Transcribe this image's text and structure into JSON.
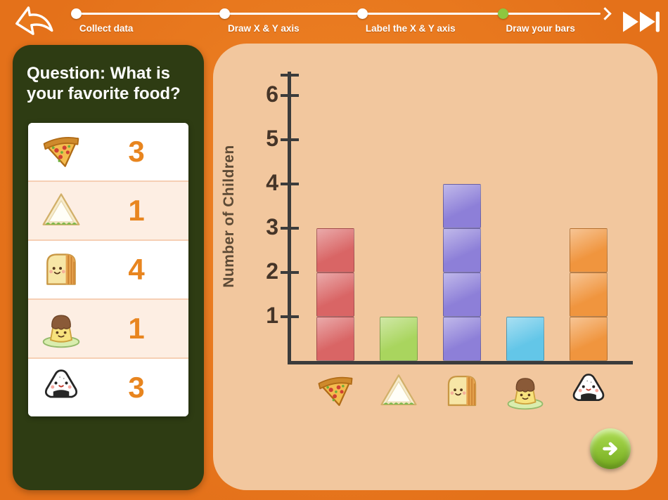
{
  "header": {
    "back_icon": "back-arrow-icon",
    "skip_icon": "fast-forward-icon",
    "active_step_color": "#8dc63f",
    "steps": [
      {
        "label": "Collect data",
        "state": "done"
      },
      {
        "label": "Draw X & Y axis",
        "state": "done"
      },
      {
        "label": "Label the X & Y axis",
        "state": "done"
      },
      {
        "label": "Draw your bars",
        "state": "active"
      }
    ]
  },
  "question_panel": {
    "title": "Question: What is your favorite food?",
    "count_color": "#e8851f",
    "rows": [
      {
        "food": "pizza",
        "count": "3"
      },
      {
        "food": "sandwich",
        "count": "1"
      },
      {
        "food": "bread",
        "count": "4"
      },
      {
        "food": "pudding",
        "count": "1"
      },
      {
        "food": "onigiri",
        "count": "3"
      }
    ]
  },
  "chart_data": {
    "type": "bar",
    "categories": [
      "pizza",
      "sandwich",
      "bread",
      "pudding",
      "onigiri"
    ],
    "values": [
      3,
      1,
      4,
      1,
      3
    ],
    "ylabel": "Number of Children",
    "yticks": [
      1,
      2,
      3,
      4,
      5,
      6
    ],
    "ylim": [
      0,
      6.5
    ],
    "grid": false,
    "legend": false,
    "bar_colors": [
      "#d96565",
      "#a9d55e",
      "#8d7fd8",
      "#63c6e8",
      "#f0953e"
    ]
  },
  "footer": {
    "next_icon": "next-arrow-icon"
  }
}
